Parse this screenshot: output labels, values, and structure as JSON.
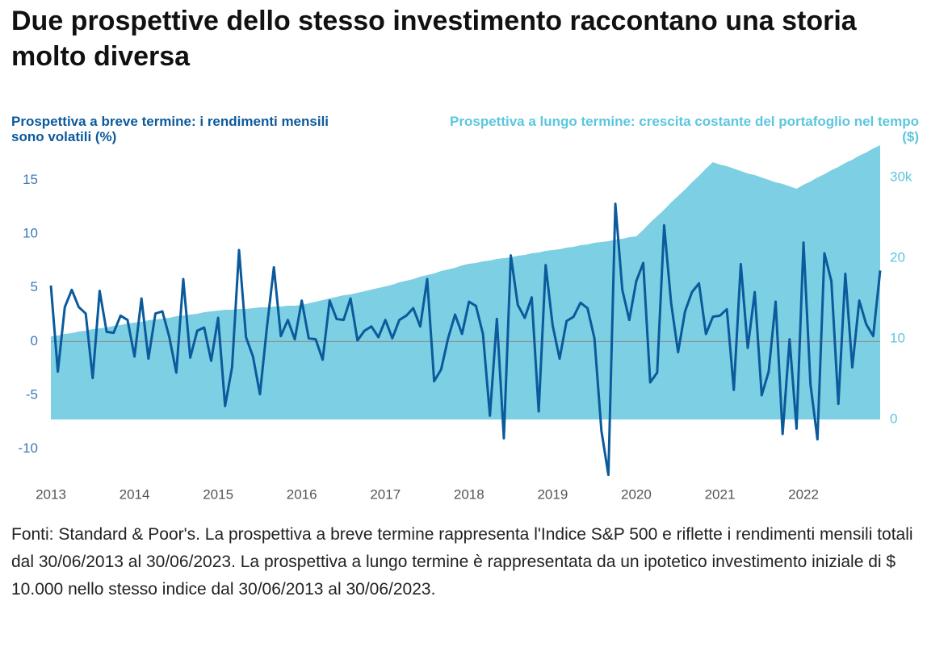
{
  "chart_data": {
    "type": "line",
    "title": "Due prospettive dello stesso investimento raccontano una storia molto diversa",
    "ylabel": "Prospettiva a breve termine: i rendimenti mensili sono volatili (%)",
    "y2label": "Prospettiva a lungo termine: crescita costante del portafoglio nel tempo ($)",
    "note": "Fonti: Standard & Poor's. La prospettiva a breve termine rappresenta l'Indice S&P 500 e riflette i rendimenti mensili totali dal 30/06/2013 al 30/06/2023. La prospettiva a lungo termine è rappresentata da un ipotetico investimento iniziale di $ 10.000 nello stesso indice dal 30/06/2013 al 30/06/2023.",
    "categories": [
      "2013",
      null,
      null,
      null,
      null,
      null,
      null,
      null,
      null,
      null,
      null,
      null,
      "2014",
      null,
      null,
      null,
      null,
      null,
      null,
      null,
      null,
      null,
      null,
      null,
      "2015",
      null,
      null,
      null,
      null,
      null,
      null,
      null,
      null,
      null,
      null,
      null,
      "2016",
      null,
      null,
      null,
      null,
      null,
      null,
      null,
      null,
      null,
      null,
      null,
      "2017",
      null,
      null,
      null,
      null,
      null,
      null,
      null,
      null,
      null,
      null,
      null,
      "2018",
      null,
      null,
      null,
      null,
      null,
      null,
      null,
      null,
      null,
      null,
      null,
      "2019",
      null,
      null,
      null,
      null,
      null,
      null,
      null,
      null,
      null,
      null,
      null,
      "2020",
      null,
      null,
      null,
      null,
      null,
      null,
      null,
      null,
      null,
      null,
      null,
      "2021",
      null,
      null,
      null,
      null,
      null,
      null,
      null,
      null,
      null,
      null,
      null,
      "2022",
      null,
      null,
      null,
      null,
      null,
      null,
      null,
      null,
      null,
      null,
      null
    ],
    "series": [
      {
        "type": "area",
        "axis": "y2",
        "color": "#7dcfe3",
        "values": [
          10.3,
          10.4,
          10.6,
          10.7,
          10.9,
          11.0,
          11.2,
          11.3,
          11.4,
          11.6,
          11.7,
          11.9,
          12.0,
          12.1,
          12.3,
          12.4,
          12.5,
          12.6,
          12.8,
          12.9,
          13.0,
          13.1,
          13.3,
          13.4,
          13.5,
          13.6,
          13.6,
          13.7,
          13.7,
          13.8,
          13.9,
          13.9,
          14.0,
          14.0,
          14.1,
          14.1,
          14.2,
          14.4,
          14.6,
          14.8,
          15.0,
          15.2,
          15.4,
          15.5,
          15.7,
          15.9,
          16.1,
          16.3,
          16.5,
          16.7,
          17.0,
          17.2,
          17.4,
          17.7,
          17.9,
          18.1,
          18.4,
          18.6,
          18.8,
          19.1,
          19.3,
          19.4,
          19.6,
          19.7,
          19.9,
          20.0,
          20.1,
          20.3,
          20.4,
          20.6,
          20.7,
          20.9,
          21.0,
          21.1,
          21.3,
          21.4,
          21.6,
          21.7,
          21.9,
          22.0,
          22.1,
          22.3,
          22.4,
          22.6,
          22.7,
          23.5,
          24.4,
          25.2,
          26.0,
          26.9,
          27.7,
          28.5,
          29.4,
          30.2,
          31.1,
          31.9,
          31.6,
          31.4,
          31.1,
          30.8,
          30.5,
          30.3,
          30.0,
          29.7,
          29.4,
          29.2,
          28.9,
          28.6,
          29.1,
          29.5,
          30.0,
          30.4,
          30.9,
          31.3,
          31.8,
          32.2,
          32.7,
          33.1,
          33.6,
          34.0
        ]
      },
      {
        "type": "line",
        "axis": "y",
        "color": "#0b5a9c",
        "values": [
          5.2,
          -2.8,
          3.2,
          4.8,
          3.2,
          2.6,
          -3.4,
          4.7,
          0.9,
          0.8,
          2.4,
          2.0,
          -1.4,
          4.0,
          -1.6,
          2.6,
          2.8,
          0.4,
          -2.9,
          5.8,
          -1.5,
          1.0,
          1.3,
          -1.8,
          2.2,
          -6.0,
          -2.4,
          8.5,
          0.4,
          -1.4,
          -4.9,
          1.3,
          6.9,
          0.5,
          2.0,
          0.2,
          3.8,
          0.3,
          0.2,
          -1.7,
          3.8,
          2.1,
          2.0,
          4.0,
          0.1,
          1.0,
          1.4,
          0.4,
          2.0,
          0.3,
          2.0,
          2.4,
          3.1,
          1.4,
          5.8,
          -3.7,
          -2.6,
          0.3,
          2.5,
          0.7,
          3.7,
          3.3,
          0.7,
          -6.9,
          2.1,
          -9.0,
          8.0,
          3.4,
          2.2,
          4.1,
          -6.5,
          7.1,
          1.5,
          -1.6,
          1.9,
          2.3,
          3.6,
          3.1,
          0.3,
          -8.3,
          -12.4,
          12.8,
          4.8,
          2.0,
          5.6,
          7.3,
          -3.8,
          -2.9,
          10.8,
          3.6,
          -1.0,
          2.8,
          4.6,
          5.4,
          0.7,
          2.3,
          2.4,
          3.0,
          -4.5,
          7.2,
          -0.6,
          4.6,
          -5.0,
          -2.8,
          3.7,
          -8.6,
          0.2,
          -8.1,
          9.2,
          -4.0,
          -9.1,
          8.2,
          5.6,
          -5.8,
          6.3,
          -2.4,
          3.8,
          1.6,
          0.5,
          6.6
        ]
      }
    ],
    "ylim": [
      -12.5,
      18.25
    ],
    "yticks": [
      15,
      10,
      5,
      0,
      -5,
      -10
    ],
    "y2lim": [
      -7,
      34
    ],
    "y2ticks": [
      0,
      10,
      20,
      {
        "value": 30,
        "label": "30k"
      }
    ],
    "ylabel_color": "#0b5a9c",
    "y2label_color": "#5cc6df",
    "grid": false,
    "zero_line": true
  }
}
